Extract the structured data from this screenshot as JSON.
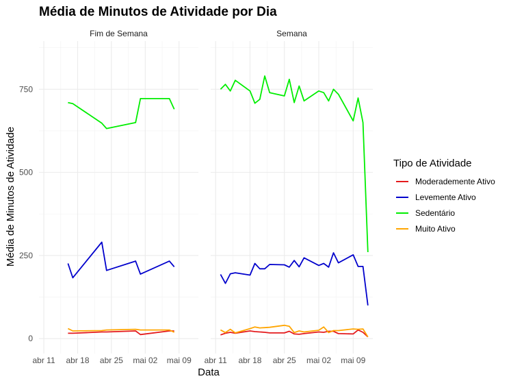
{
  "chart_data": {
    "type": "line",
    "title": "Média de Minutos de Atividade por Dia",
    "xlabel": "Data",
    "ylabel": "Média de Minutos de Atividade",
    "ylim": [
      -45,
      895
    ],
    "yticks": [
      0,
      250,
      500,
      750
    ],
    "xticks": [
      {
        "date": "2016-04-11",
        "label": "abr 11"
      },
      {
        "date": "2016-04-18",
        "label": "abr 18"
      },
      {
        "date": "2016-04-25",
        "label": "abr 25"
      },
      {
        "date": "2016-05-02",
        "label": "mai 02"
      },
      {
        "date": "2016-05-09",
        "label": "mai 09"
      }
    ],
    "xlim": [
      "2016-04-10",
      "2016-05-13"
    ],
    "grid": true,
    "legend": {
      "title": "Tipo de Atividade",
      "position": "right"
    },
    "series_styles": [
      {
        "name": "Moderademente Ativo",
        "color": "#e41a1c"
      },
      {
        "name": "Levemente Ativo",
        "color": "#0000cc"
      },
      {
        "name": "Sedentário",
        "color": "#00ee00"
      },
      {
        "name": "Muito Ativo",
        "color": "#ffa500"
      }
    ],
    "facets": [
      {
        "label": "Fim de Semana",
        "x": [
          "2016-04-16",
          "2016-04-17",
          "2016-04-23",
          "2016-04-24",
          "2016-04-30",
          "2016-05-01",
          "2016-05-07",
          "2016-05-08"
        ],
        "series": [
          {
            "name": "Sedentário",
            "values": [
              710,
              707,
              648,
              632,
              650,
              722,
              722,
              690
            ]
          },
          {
            "name": "Levemente Ativo",
            "values": [
              226,
              183,
              290,
              205,
              233,
              194,
              233,
              216
            ]
          },
          {
            "name": "Moderademente Ativo",
            "values": [
              16,
              16,
              20,
              20,
              23,
              12,
              23,
              23
            ]
          },
          {
            "name": "Muito Ativo",
            "values": [
              30,
              23,
              24,
              26,
              28,
              26,
              26,
              19
            ]
          }
        ]
      },
      {
        "label": "Semana",
        "x": [
          "2016-04-12",
          "2016-04-13",
          "2016-04-14",
          "2016-04-15",
          "2016-04-18",
          "2016-04-19",
          "2016-04-20",
          "2016-04-21",
          "2016-04-22",
          "2016-04-25",
          "2016-04-26",
          "2016-04-27",
          "2016-04-28",
          "2016-04-29",
          "2016-05-02",
          "2016-05-03",
          "2016-05-04",
          "2016-05-05",
          "2016-05-06",
          "2016-05-09",
          "2016-05-10",
          "2016-05-11",
          "2016-05-12"
        ],
        "series": [
          {
            "name": "Sedentário",
            "values": [
              750,
              765,
              745,
              777,
              745,
              708,
              720,
              790,
              740,
              730,
              780,
              710,
              760,
              715,
              745,
              740,
              715,
              750,
              735,
              655,
              724,
              650,
              260
            ]
          },
          {
            "name": "Levemente Ativo",
            "values": [
              193,
              166,
              195,
              198,
              191,
              226,
              210,
              210,
              223,
              222,
              215,
              235,
              216,
              243,
              220,
              226,
              215,
              258,
              228,
              252,
              217,
              217,
              100
            ]
          },
          {
            "name": "Moderademente Ativo",
            "values": [
              11,
              16,
              19,
              16,
              23,
              21,
              20,
              19,
              17,
              17,
              22,
              14,
              13,
              15,
              20,
              19,
              22,
              22,
              15,
              14,
              26,
              19,
              5
            ]
          },
          {
            "name": "Muito Ativo",
            "values": [
              26,
              18,
              28,
              17,
              30,
              35,
              32,
              33,
              34,
              40,
              37,
              18,
              23,
              20,
              25,
              35,
              18,
              24,
              24,
              29,
              28,
              29,
              5
            ]
          }
        ]
      }
    ]
  }
}
